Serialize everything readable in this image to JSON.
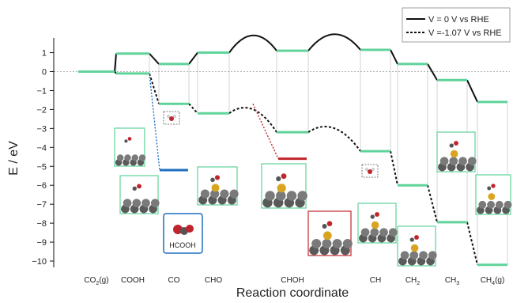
{
  "chart_data": {
    "type": "line",
    "xlabel": "Reaction coordinate",
    "ylabel": "E / eV",
    "ylim": [
      -10.6,
      1.8
    ],
    "yticks": [
      1,
      0,
      -1,
      -2,
      -3,
      -4,
      -5,
      -6,
      -7,
      -8,
      -9,
      -10
    ],
    "categories": [
      {
        "text": "CO",
        "sub": "2",
        "post": "(g)"
      },
      {
        "text": "COOH",
        "sub": "",
        "post": ""
      },
      {
        "text": "CO",
        "sub": "",
        "post": ""
      },
      {
        "text": "CHO",
        "sub": "",
        "post": ""
      },
      {
        "text": "CHOH",
        "sub": "",
        "post": ""
      },
      {
        "text": "CH",
        "sub": "",
        "post": ""
      },
      {
        "text": "CH",
        "sub": "2",
        "post": ""
      },
      {
        "text": "CH",
        "sub": "3",
        "post": ""
      },
      {
        "text": "CH",
        "sub": "4",
        "post": "(g)"
      }
    ],
    "series": [
      {
        "name": "V = 0 V vs RHE",
        "style": "solid",
        "values": [
          0,
          0.95,
          0.4,
          1.0,
          1.1,
          1.15,
          0.4,
          -0.45,
          -1.6
        ]
      },
      {
        "name": "V =-1.07 V vs RHE",
        "style": "dashed",
        "values": [
          0,
          -0.1,
          -1.7,
          -2.2,
          -3.2,
          -4.2,
          -6.0,
          -7.95,
          -10.2
        ]
      }
    ],
    "branch": {
      "label": "HCOOH",
      "from_category": "COOH",
      "value": -5.2,
      "color": "#1f6fbf"
    },
    "intermediate": {
      "from_category": "CHO",
      "value": -4.6,
      "color": "#c0242c"
    },
    "legend_position": "top-right",
    "zero_gridline": true,
    "level_color": "#5fd39a"
  }
}
